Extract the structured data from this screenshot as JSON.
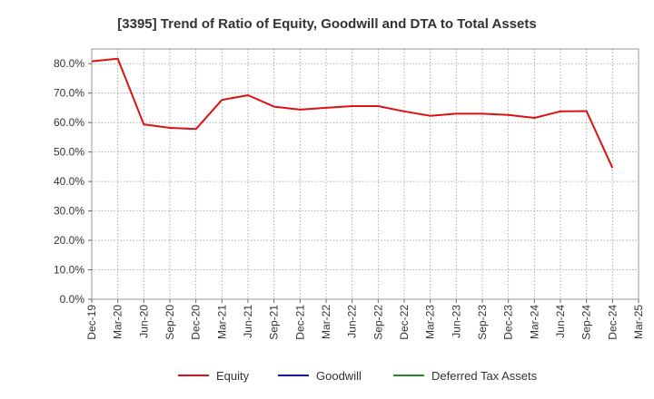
{
  "chart_data": {
    "type": "line",
    "title": "[3395]  Trend of Ratio of Equity, Goodwill and DTA to Total Assets",
    "xlabel": "",
    "ylabel": "",
    "ylim": [
      0,
      85
    ],
    "y_ticks": [
      0,
      10,
      20,
      30,
      40,
      50,
      60,
      70,
      80
    ],
    "y_tick_labels": [
      "0.0%",
      "10.0%",
      "20.0%",
      "30.0%",
      "40.0%",
      "50.0%",
      "60.0%",
      "70.0%",
      "80.0%"
    ],
    "x_tick_labels": [
      "Dec-19",
      "Mar-20",
      "Jun-20",
      "Sep-20",
      "Dec-20",
      "Mar-21",
      "Jun-21",
      "Sep-21",
      "Dec-21",
      "Mar-22",
      "Jun-22",
      "Sep-22",
      "Dec-22",
      "Mar-23",
      "Jun-23",
      "Sep-23",
      "Dec-23",
      "Mar-24",
      "Jun-24",
      "Sep-24",
      "Dec-24",
      "Mar-25"
    ],
    "grid": true,
    "legend_position": "bottom",
    "series": [
      {
        "name": "Equity",
        "color": "#dd1111",
        "values": [
          80.8,
          81.7,
          59.4,
          58.2,
          57.8,
          67.7,
          69.3,
          65.4,
          64.4,
          65.0,
          65.6,
          65.6,
          63.8,
          62.3,
          63.0,
          63.0,
          62.6,
          61.6,
          63.8,
          63.9,
          44.6,
          null
        ]
      },
      {
        "name": "Goodwill",
        "color": "#1111cc",
        "values": []
      },
      {
        "name": "Deferred Tax Assets",
        "color": "#228822",
        "values": []
      }
    ]
  }
}
